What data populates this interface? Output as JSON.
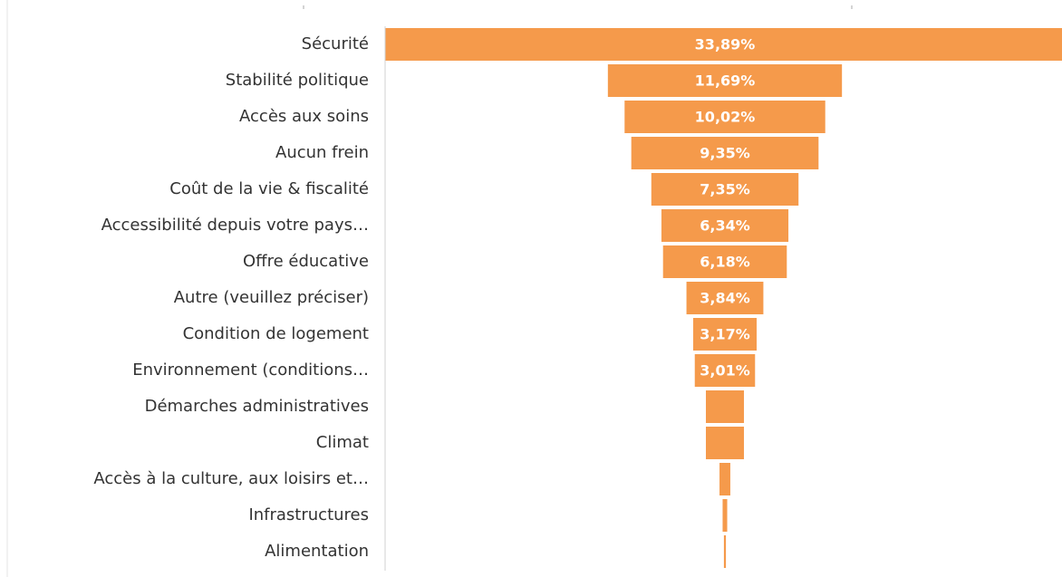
{
  "chart_data": {
    "type": "funnel",
    "categories": [
      "Sécurité",
      "Stabilité politique",
      "Accès aux soins",
      "Aucun frein",
      "Coût de la vie & fiscalité",
      "Accessibilité depuis votre pays…",
      "Offre éducative",
      "Autre (veuillez préciser)",
      "Condition de logement",
      "Environnement (conditions…",
      "Démarches administratives",
      "Climat",
      "Accès à la culture, aux loisirs et…",
      "Infrastructures",
      "Alimentation"
    ],
    "values": [
      33.89,
      11.69,
      10.02,
      9.35,
      7.35,
      6.34,
      6.18,
      3.84,
      3.17,
      3.01,
      1.9,
      1.9,
      0.54,
      0.23,
      0.1
    ],
    "value_labels": [
      "33,89%",
      "11,69%",
      "10,02%",
      "9,35%",
      "7,35%",
      "6,34%",
      "6,18%",
      "3,84%",
      "3,17%",
      "3,01%",
      null,
      null,
      null,
      null,
      null
    ],
    "color": "#f59a4b"
  }
}
